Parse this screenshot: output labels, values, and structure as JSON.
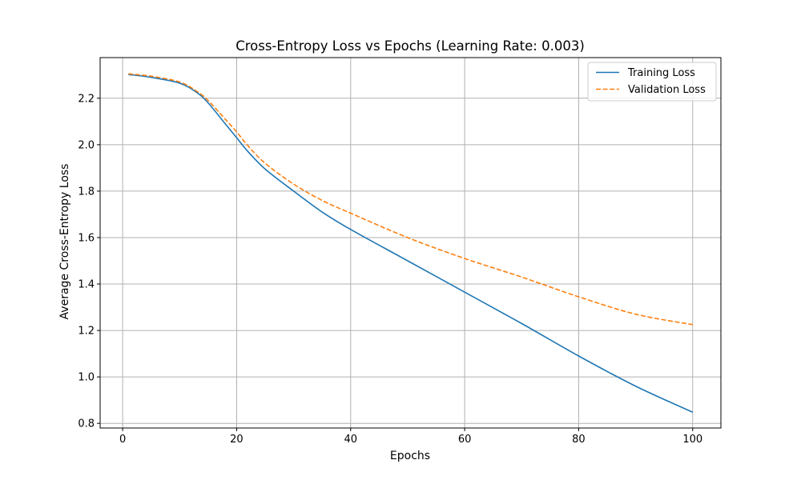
{
  "chart_data": {
    "type": "line",
    "title": "Cross-Entropy Loss vs Epochs (Learning Rate: 0.003)",
    "xlabel": "Epochs",
    "ylabel": "Average Cross-Entropy Loss",
    "xlim": [
      -3.95,
      104.95
    ],
    "ylim": [
      0.78,
      2.375
    ],
    "xticks": [
      0,
      20,
      40,
      60,
      80,
      100
    ],
    "yticks": [
      0.8,
      1.0,
      1.2,
      1.4,
      1.6,
      1.8,
      2.0,
      2.2
    ],
    "xtick_labels": [
      "0",
      "20",
      "40",
      "60",
      "80",
      "100"
    ],
    "ytick_labels": [
      "0.8",
      "1.0",
      "1.2",
      "1.4",
      "1.6",
      "1.8",
      "2.0",
      "2.2"
    ],
    "grid": true,
    "legend_position": "top-right",
    "series": [
      {
        "name": "Training Loss",
        "color": "#1f77b4",
        "linestyle": "solid",
        "x": [
          1,
          5,
          10,
          13,
          15,
          18,
          20,
          22,
          25,
          30,
          35,
          40,
          50,
          60,
          70,
          80,
          90,
          100
        ],
        "y": [
          2.302,
          2.29,
          2.265,
          2.225,
          2.18,
          2.09,
          2.03,
          1.97,
          1.895,
          1.8,
          1.71,
          1.635,
          1.5,
          1.365,
          1.23,
          1.09,
          0.96,
          0.848
        ]
      },
      {
        "name": "Validation Loss",
        "color": "#ff7f0e",
        "linestyle": "dashed",
        "x": [
          1,
          5,
          10,
          13,
          15,
          18,
          20,
          22,
          25,
          30,
          35,
          40,
          50,
          60,
          70,
          80,
          90,
          100
        ],
        "y": [
          2.305,
          2.295,
          2.27,
          2.23,
          2.19,
          2.11,
          2.055,
          1.995,
          1.92,
          1.83,
          1.76,
          1.705,
          1.6,
          1.51,
          1.43,
          1.345,
          1.27,
          1.225
        ]
      }
    ]
  }
}
